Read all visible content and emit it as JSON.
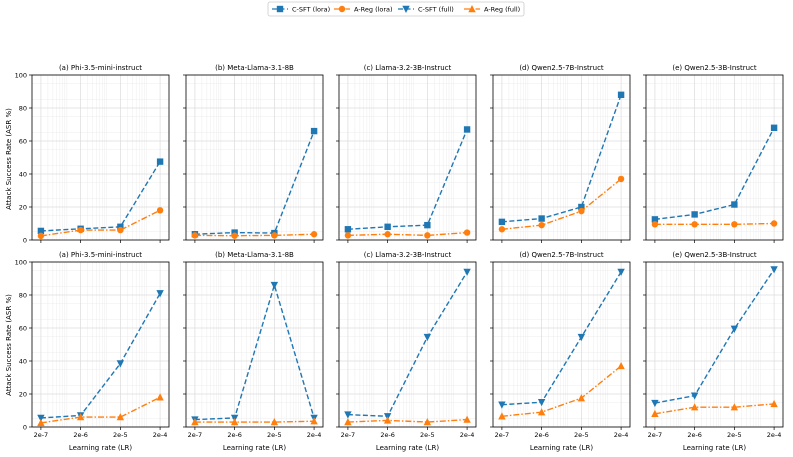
{
  "legend": {
    "entries": [
      {
        "label": "C-SFT (lora)",
        "color": "#1f77b4",
        "marker": "square",
        "dash": "dashed"
      },
      {
        "label": "A-Reg (lora)",
        "color": "#ff7f0e",
        "marker": "circle",
        "dash": "dashdot"
      },
      {
        "label": "C-SFT (full)",
        "color": "#1f77b4",
        "marker": "triangle-down",
        "dash": "dashed"
      },
      {
        "label": "A-Reg (full)",
        "color": "#ff7f0e",
        "marker": "triangle-up",
        "dash": "dashdot"
      }
    ]
  },
  "ylabel": "Attack Success Rate (ASR %)",
  "xlabel": "Learning rate (LR)",
  "chart_data": [
    {
      "type": "line",
      "row": "lora",
      "panels": [
        {
          "title": "(a) Phi-3.5-mini-instruct",
          "series": [
            {
              "name": "C-SFT (lora)",
              "values": [
                5.5,
                6.8,
                8.0,
                47.5
              ]
            },
            {
              "name": "A-Reg (lora)",
              "values": [
                2.5,
                6.0,
                6.0,
                18.0
              ]
            }
          ]
        },
        {
          "title": "(b) Meta-Llama-3.1-8B",
          "series": [
            {
              "name": "C-SFT (lora)",
              "values": [
                3.5,
                4.5,
                4.2,
                66.0
              ]
            },
            {
              "name": "A-Reg (lora)",
              "values": [
                2.8,
                2.6,
                2.8,
                3.5
              ]
            }
          ]
        },
        {
          "title": "(c) Llama-3.2-3B-Instruct",
          "series": [
            {
              "name": "C-SFT (lora)",
              "values": [
                6.5,
                8.0,
                9.0,
                67.0
              ]
            },
            {
              "name": "A-Reg (lora)",
              "values": [
                2.8,
                3.5,
                2.8,
                4.5
              ]
            }
          ]
        },
        {
          "title": "(d) Qwen2.5-7B-Instruct",
          "series": [
            {
              "name": "C-SFT (lora)",
              "values": [
                11.0,
                13.0,
                20.0,
                88.0
              ]
            },
            {
              "name": "A-Reg (lora)",
              "values": [
                6.5,
                9.0,
                17.5,
                37.0
              ]
            }
          ]
        },
        {
          "title": "(e) Qwen2.5-3B-Instruct",
          "series": [
            {
              "name": "C-SFT (lora)",
              "values": [
                12.5,
                15.5,
                21.5,
                68.0
              ]
            },
            {
              "name": "A-Reg (lora)",
              "values": [
                9.5,
                9.5,
                9.5,
                10.0
              ]
            }
          ]
        }
      ]
    },
    {
      "type": "line",
      "row": "full",
      "panels": [
        {
          "title": "(a) Phi-3.5-mini-instruct",
          "series": [
            {
              "name": "C-SFT (full)",
              "values": [
                5.5,
                7.0,
                38.5,
                81.0
              ]
            },
            {
              "name": "A-Reg (full)",
              "values": [
                2.5,
                6.0,
                6.0,
                18.0
              ]
            }
          ]
        },
        {
          "title": "(b) Meta-Llama-3.1-8B",
          "series": [
            {
              "name": "C-SFT (full)",
              "values": [
                4.5,
                5.5,
                86.0,
                5.5
              ]
            },
            {
              "name": "A-Reg (full)",
              "values": [
                3.0,
                3.0,
                3.0,
                3.5
              ]
            }
          ]
        },
        {
          "title": "(c) Llama-3.2-3B-Instruct",
          "series": [
            {
              "name": "C-SFT (full)",
              "values": [
                7.5,
                6.5,
                54.5,
                94.0
              ]
            },
            {
              "name": "A-Reg (full)",
              "values": [
                3.0,
                4.0,
                3.0,
                4.5
              ]
            }
          ]
        },
        {
          "title": "(d) Qwen2.5-7B-Instruct",
          "series": [
            {
              "name": "C-SFT (full)",
              "values": [
                13.5,
                15.0,
                54.5,
                94.0
              ]
            },
            {
              "name": "A-Reg (full)",
              "values": [
                6.5,
                9.0,
                17.5,
                37.0
              ]
            }
          ]
        },
        {
          "title": "(e) Qwen2.5-3B-Instruct",
          "series": [
            {
              "name": "C-SFT (full)",
              "values": [
                14.5,
                19.0,
                59.5,
                95.5
              ]
            },
            {
              "name": "A-Reg (full)",
              "values": [
                8.0,
                12.0,
                12.0,
                14.0
              ]
            }
          ]
        }
      ]
    }
  ],
  "axes": {
    "x_ticks": [
      "2e-7",
      "2e-6",
      "2e-5",
      "2e-4"
    ],
    "y_ticks": [
      0,
      20,
      40,
      60,
      80,
      100
    ],
    "ylim": [
      0,
      100
    ],
    "xscale": "log",
    "grid": true
  }
}
